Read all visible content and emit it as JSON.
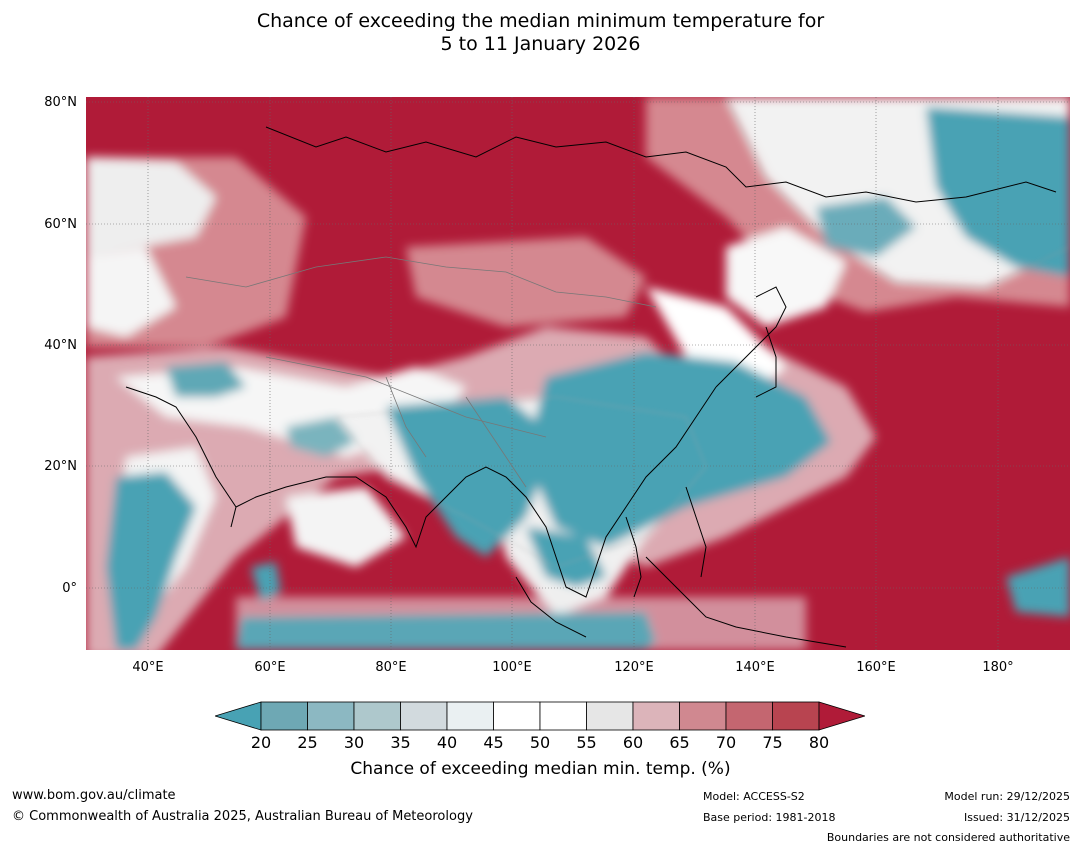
{
  "title": {
    "line1": "Chance of exceeding the median minimum temperature for",
    "line2": "5 to 11 January 2026"
  },
  "map": {
    "lat_ticks": [
      "80°N",
      "60°N",
      "40°N",
      "20°N",
      "0°"
    ],
    "lon_ticks": [
      "40°E",
      "60°E",
      "80°E",
      "100°E",
      "120°E",
      "140°E",
      "160°E",
      "180°"
    ],
    "colors": {
      "warm_strong": "#b01b38",
      "warm_mid": "#c0505e",
      "warm_light": "#dcaab2",
      "neutral": "#ffffff",
      "cool_light": "#aec8cc",
      "cool_strong": "#48a2b4"
    }
  },
  "colorbar": {
    "ticks": [
      "20",
      "25",
      "30",
      "35",
      "40",
      "45",
      "50",
      "55",
      "60",
      "65",
      "70",
      "75",
      "80"
    ],
    "colors": [
      "#48a2b4",
      "#6ea8b4",
      "#8cb8c2",
      "#aec8cc",
      "#d2dade",
      "#eaf0f2",
      "#ffffff",
      "#ffffff",
      "#e6e6e6",
      "#dcb4ba",
      "#d08890",
      "#c46670",
      "#b84450",
      "#b01b38"
    ],
    "label": "Chance of exceeding median min. temp. (%)"
  },
  "footer": {
    "website": "www.bom.gov.au/climate",
    "copyright": "© Commonwealth of Australia 2025, Australian Bureau of Meteorology",
    "model": "Model: ACCESS-S2",
    "base_period": "Base period: 1981-2018",
    "model_run": "Model run: 29/12/2025",
    "issued": "Issued: 31/12/2025",
    "disclaimer": "Boundaries are not considered authoritative"
  }
}
